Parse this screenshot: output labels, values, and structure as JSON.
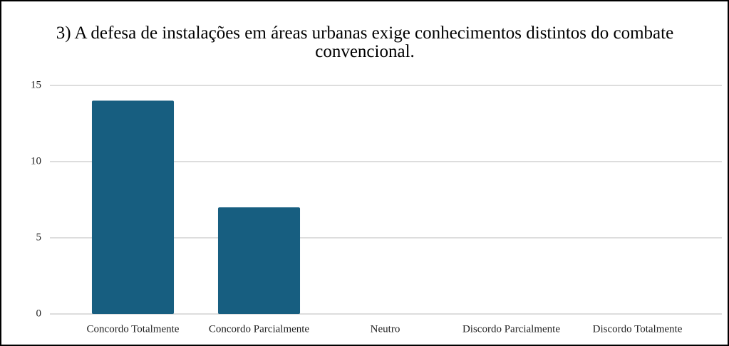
{
  "chart_data": {
    "type": "bar",
    "title": "3) A defesa de instalações em áreas urbanas exige conhecimentos distintos do combate convencional.",
    "categories": [
      "Concordo Totalmente",
      "Concordo Parcialmente",
      "Neutro",
      "Discordo Parcialmente",
      "Discordo Totalmente"
    ],
    "values": [
      14,
      7,
      0,
      0,
      0
    ],
    "color": "#175e80",
    "ylim": [
      0,
      15
    ],
    "yticks": [
      0,
      5,
      10,
      15
    ],
    "grid": true
  }
}
